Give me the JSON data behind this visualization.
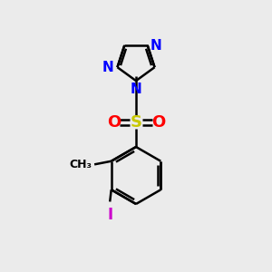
{
  "bg_color": "#ebebeb",
  "bond_color": "#000000",
  "n_color": "#0000ff",
  "s_color": "#c8c800",
  "o_color": "#ff0000",
  "i_color": "#cc00cc",
  "lw": 1.8,
  "fig_w": 3.0,
  "fig_h": 3.0,
  "dpi": 100,
  "xlim": [
    0,
    10
  ],
  "ylim": [
    0,
    10
  ]
}
